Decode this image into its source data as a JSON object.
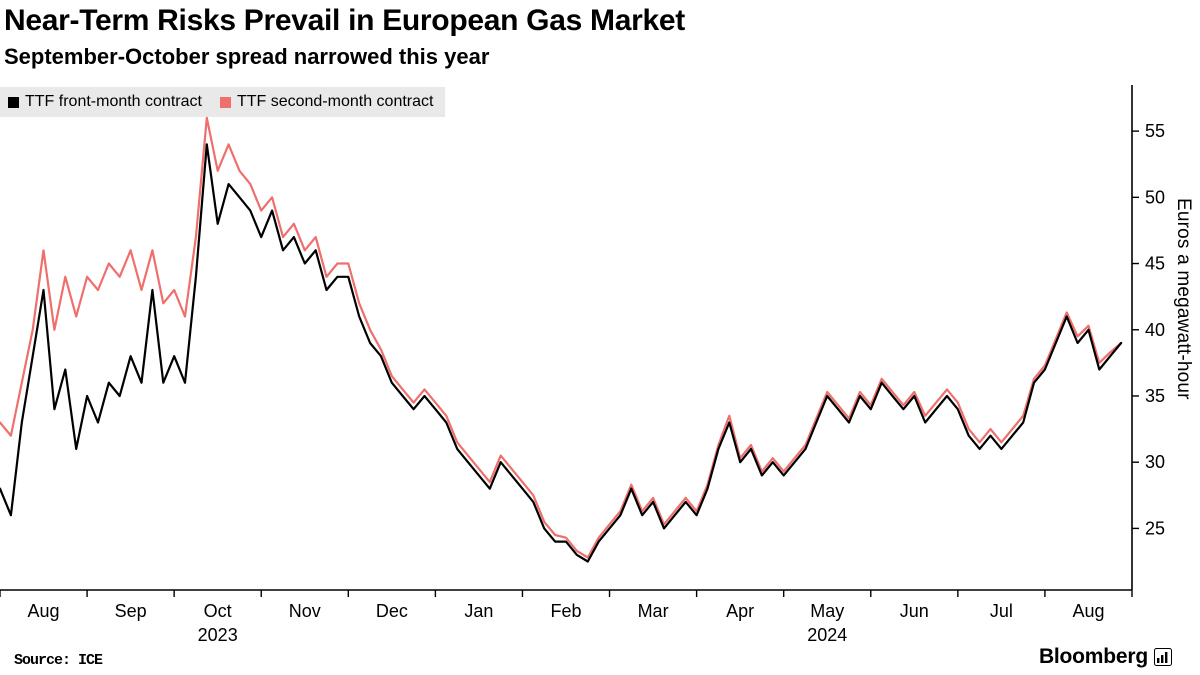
{
  "chart_data": {
    "type": "line",
    "title": "Near-Term Risks Prevail in European Gas Market",
    "subtitle": "September-October spread narrowed this year",
    "ylabel": "Euros a megawatt-hour",
    "ylim": [
      20.5,
      57.5
    ],
    "yticks": [
      25,
      30,
      35,
      40,
      45,
      50,
      55
    ],
    "x_months": [
      "Aug",
      "Sep",
      "Oct",
      "Nov",
      "Dec",
      "Jan",
      "Feb",
      "Mar",
      "Apr",
      "May",
      "Jun",
      "Jul",
      "Aug"
    ],
    "year_labels": [
      {
        "label": "2023",
        "month_index": 2
      },
      {
        "label": "2024",
        "month_index": 9
      }
    ],
    "points_per_month": 8,
    "grid": false,
    "legend_position": "top-left",
    "series": [
      {
        "name": "TTF front-month contract",
        "color": "#000000",
        "values": [
          28,
          26,
          33,
          38,
          43,
          34,
          37,
          31,
          35,
          33,
          36,
          35,
          38,
          36,
          43,
          36,
          38,
          36,
          44,
          54,
          48,
          51,
          50,
          49,
          47,
          49,
          46,
          47,
          45,
          46,
          43,
          44,
          44,
          41,
          39,
          38,
          36,
          35,
          34,
          35,
          34,
          33,
          31,
          30,
          29,
          28,
          30,
          29,
          28,
          27,
          25,
          24,
          24,
          23,
          22.5,
          24,
          25,
          26,
          28,
          26,
          27,
          25,
          26,
          27,
          26,
          28,
          31,
          33,
          30,
          31,
          29,
          30,
          29,
          30,
          31,
          33,
          35,
          34,
          33,
          35,
          34,
          36,
          35,
          34,
          35,
          33,
          34,
          35,
          34,
          32,
          31,
          32,
          31,
          32,
          33,
          36,
          37,
          39,
          41,
          39,
          40,
          37,
          38,
          39
        ]
      },
      {
        "name": "TTF second-month contract",
        "color": "#ef6f6c",
        "values": [
          33,
          32,
          36,
          40,
          46,
          40,
          44,
          41,
          44,
          43,
          45,
          44,
          46,
          43,
          46,
          42,
          43,
          41,
          47,
          56,
          52,
          54,
          52,
          51,
          49,
          50,
          47,
          48,
          46,
          47,
          44,
          45,
          45,
          42,
          40,
          38.5,
          36.5,
          35.5,
          34.5,
          35.5,
          34.5,
          33.5,
          31.5,
          30.5,
          29.5,
          28.5,
          30.5,
          29.5,
          28.5,
          27.5,
          25.5,
          24.5,
          24.3,
          23.3,
          22.8,
          24.3,
          25.3,
          26.3,
          28.3,
          26.3,
          27.3,
          25.3,
          26.3,
          27.3,
          26.3,
          28.3,
          31.3,
          33.5,
          30.3,
          31.3,
          29.3,
          30.3,
          29.3,
          30.3,
          31.3,
          33.3,
          35.3,
          34.3,
          33.3,
          35.3,
          34.3,
          36.3,
          35.3,
          34.3,
          35.3,
          33.5,
          34.5,
          35.5,
          34.5,
          32.5,
          31.5,
          32.5,
          31.5,
          32.5,
          33.5,
          36.3,
          37.3,
          39.3,
          41.3,
          39.5,
          40.3,
          37.5,
          38.3,
          39
        ]
      }
    ]
  },
  "source": "Source: ICE",
  "branding": "Bloomberg"
}
